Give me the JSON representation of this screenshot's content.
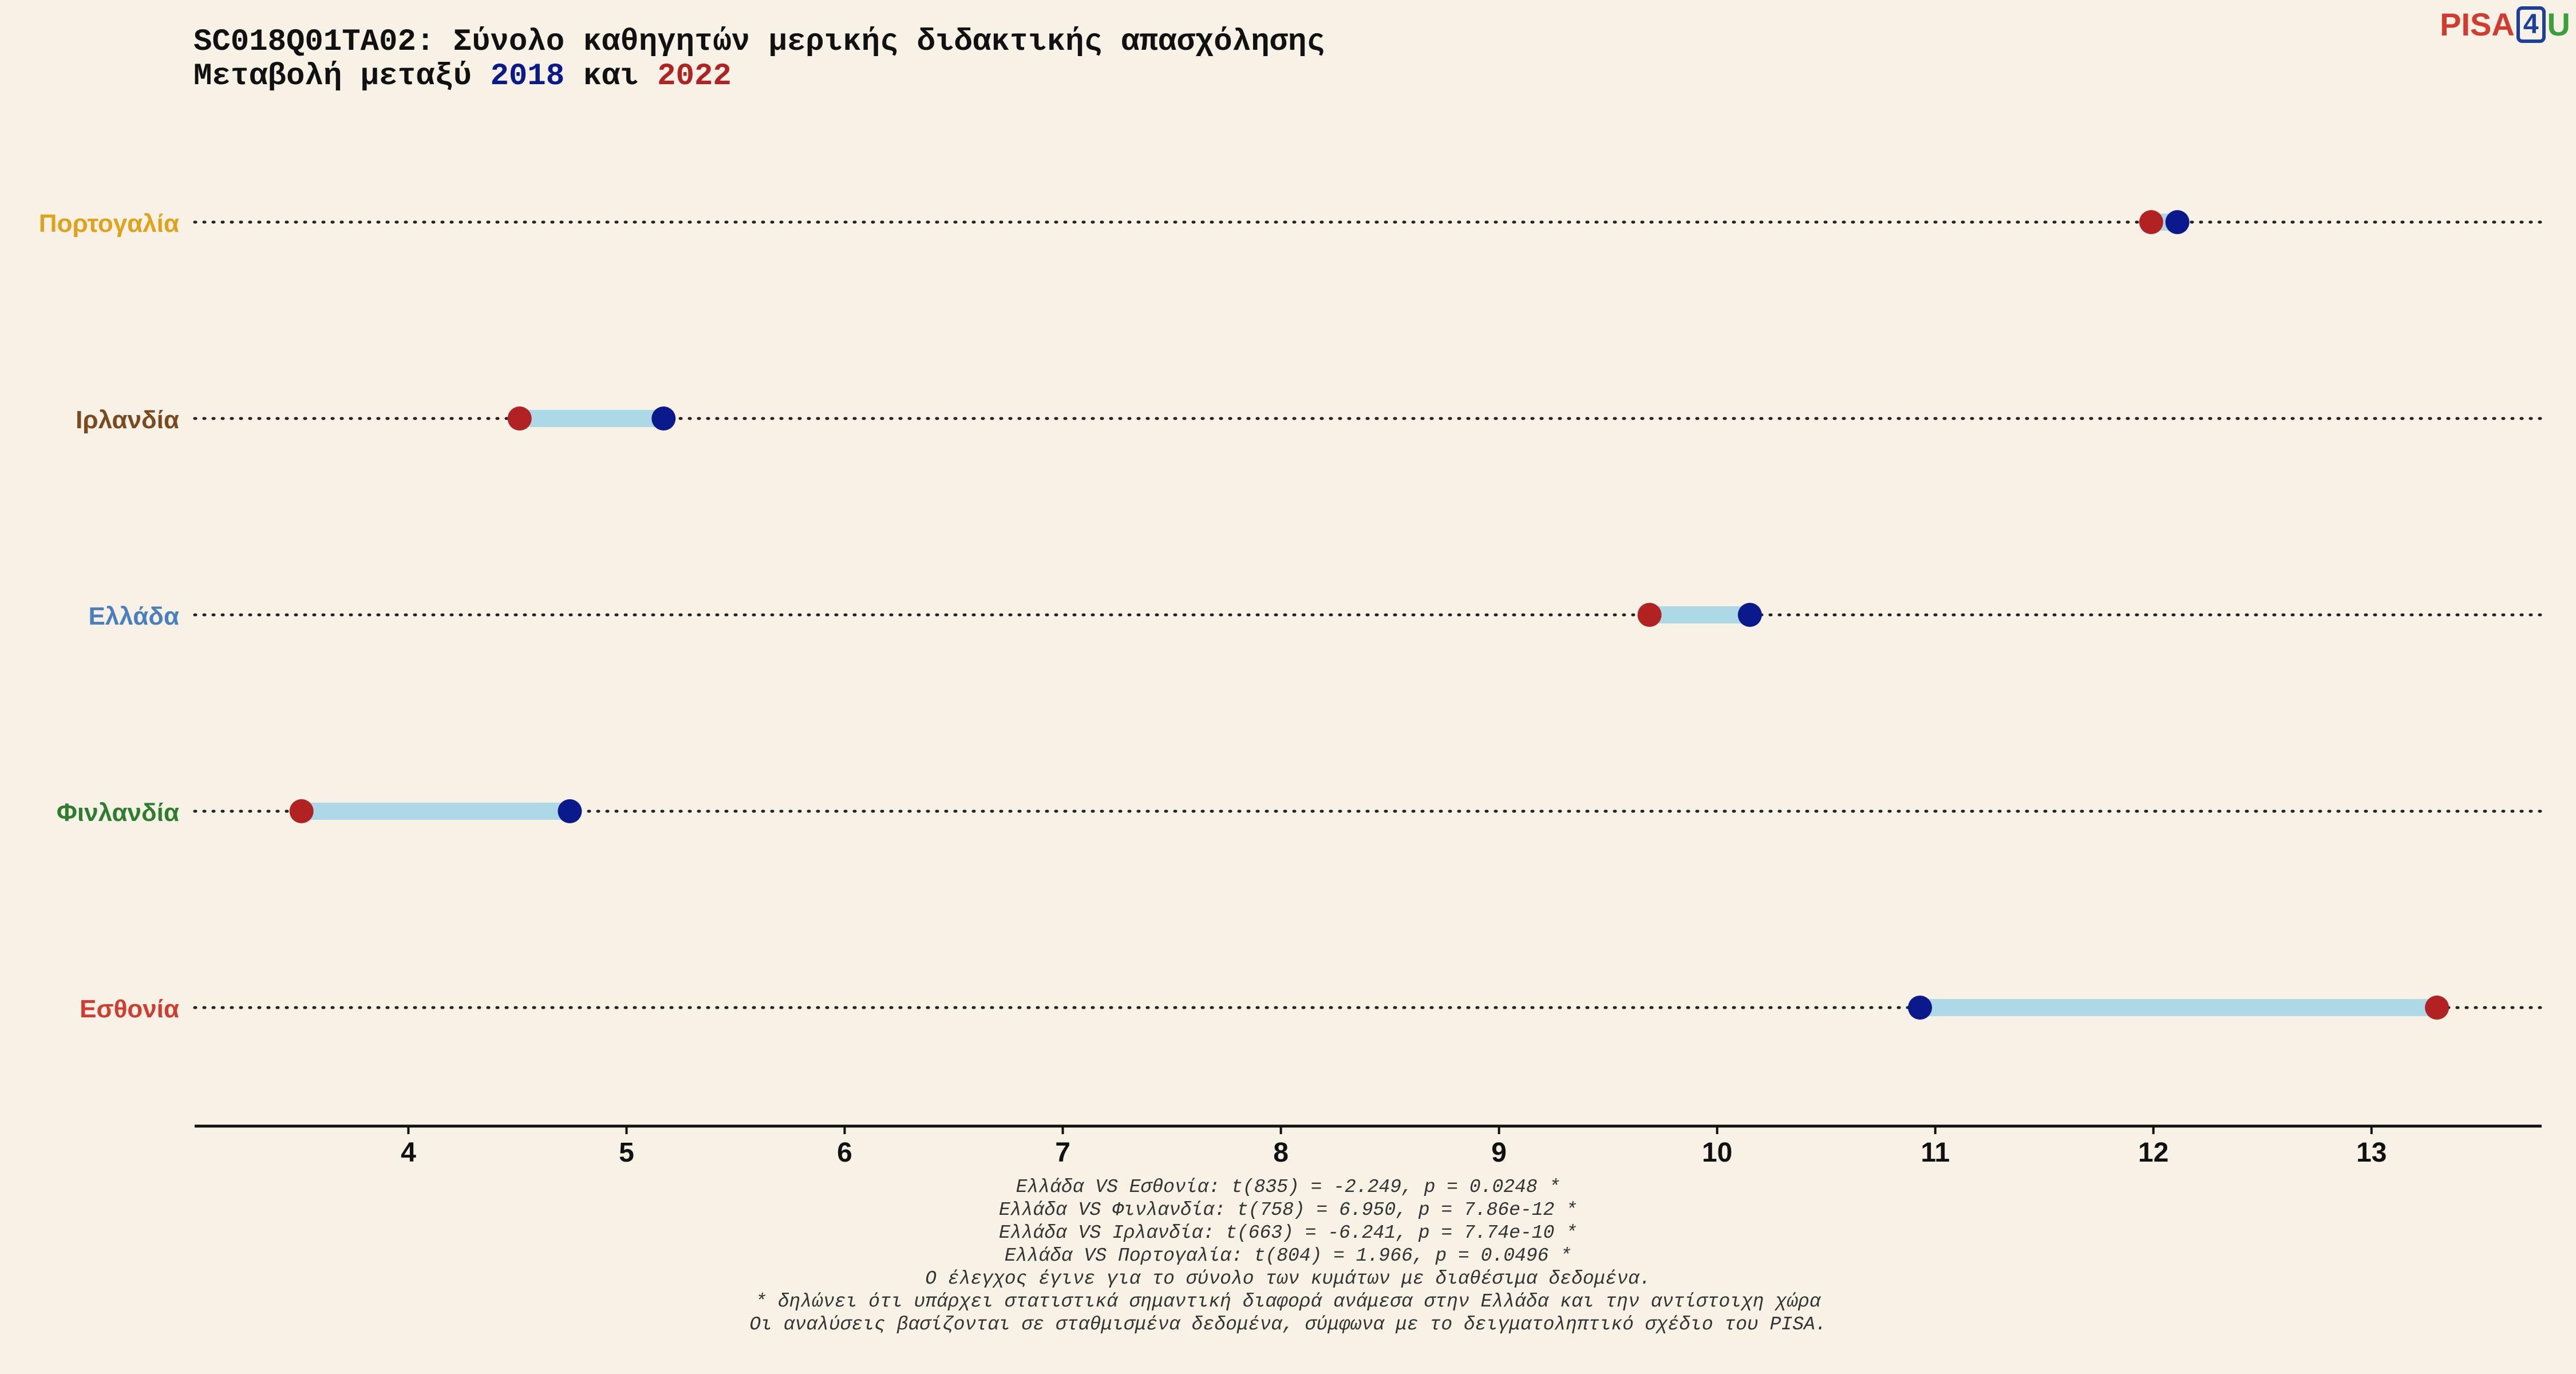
{
  "title_line1": "SC018Q01TA02: Σύνολο καθηγητών μερικής διδακτικής απασχόλησης",
  "title_line2_prefix": "Μεταβολή μεταξύ ",
  "title_year1": "2018",
  "title_and": " και ",
  "title_year2": "2022",
  "logo": {
    "pisa": "PISA",
    "four": "4",
    "u": "U"
  },
  "colors": {
    "background": "#f7f2e5",
    "year_2018": "#0a1a8c",
    "year_2022": "#b22222",
    "connector": "#add8e6"
  },
  "chart_data": {
    "type": "dumbbell",
    "xlim": [
      3.02,
      13.78
    ],
    "x_ticks": [
      4,
      5,
      6,
      7,
      8,
      9,
      10,
      11,
      12,
      13
    ],
    "grid": false,
    "series_names": [
      "2018",
      "2022"
    ],
    "rows": [
      {
        "country": "Πορτογαλία",
        "label_color": "#e0a21b",
        "v2018": 12.11,
        "v2022": 11.99
      },
      {
        "country": "Ιρλανδία",
        "label_color": "#7a4a1e",
        "v2018": 5.17,
        "v2022": 4.51
      },
      {
        "country": "Ελλάδα",
        "label_color": "#4a7fbf",
        "v2018": 10.15,
        "v2022": 9.69
      },
      {
        "country": "Φινλανδία",
        "label_color": "#2e7d2e",
        "v2018": 4.74,
        "v2022": 3.51
      },
      {
        "country": "Εσθονία",
        "label_color": "#d43b2f",
        "v2018": 10.93,
        "v2022": 13.3
      }
    ]
  },
  "notes": [
    "Ελλάδα VS Εσθονία: t(835) = -2.249, p = 0.0248 *",
    "Ελλάδα VS Φινλανδία: t(758) = 6.950, p = 7.86e-12 *",
    "Ελλάδα VS Ιρλανδία: t(663) = -6.241, p = 7.74e-10 *",
    "Ελλάδα VS Πορτογαλία: t(804) = 1.966, p = 0.0496 *",
    "Ο έλεγχος έγινε για το σύνολο των κυμάτων με διαθέσιμα δεδομένα.",
    "* δηλώνει ότι υπάρχει στατιστικά σημαντική διαφορά ανάμεσα στην Ελλάδα και την αντίστοιχη χώρα",
    "Οι αναλύσεις βασίζονται σε σταθμισμένα δεδομένα, σύμφωνα με το δειγματοληπτικό σχέδιο του PISA."
  ]
}
